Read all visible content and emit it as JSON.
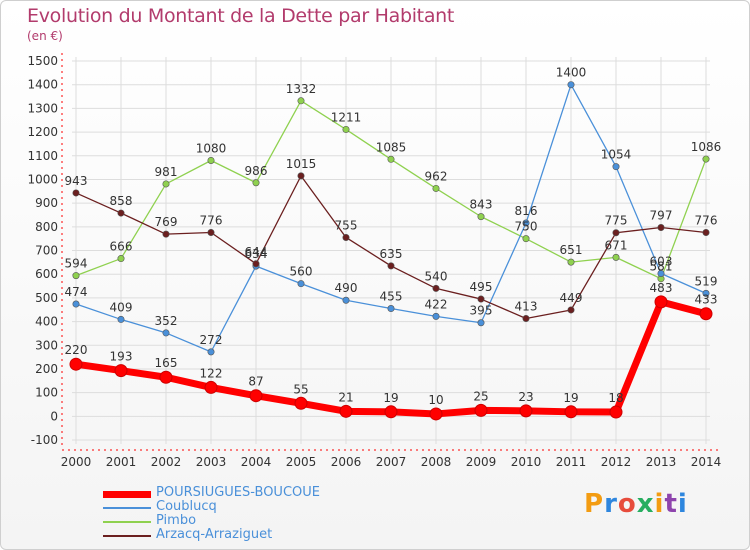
{
  "title": "Evolution du Montant de la Dette par Habitant",
  "unit_label": "(en €)",
  "logo_text": "Proxiti",
  "chart_data": {
    "type": "line",
    "x": [
      "2000",
      "2001",
      "2002",
      "2003",
      "2004",
      "2005",
      "2006",
      "2007",
      "2008",
      "2009",
      "2010",
      "2011",
      "2012",
      "2013",
      "2014"
    ],
    "ylim": [
      -100,
      1500
    ],
    "yticks": [
      "-100",
      "0",
      "100",
      "200",
      "300",
      "400",
      "500",
      "600",
      "700",
      "800",
      "900",
      "1000",
      "1100",
      "1200",
      "1300",
      "1400",
      "1500"
    ],
    "grid": true,
    "legend_position": "bottom-left",
    "series": [
      {
        "name": "POURSIUGUES-BOUCOUE",
        "color": "#ff0000",
        "values": [
          220,
          193,
          165,
          122,
          87,
          55,
          21,
          19,
          10,
          25,
          23,
          19,
          18,
          483,
          433
        ],
        "labels": [
          "220",
          "193",
          "165",
          "122",
          "87",
          "55",
          "21",
          "19",
          "10",
          "25",
          "23",
          "19",
          "18",
          "483",
          "433"
        ]
      },
      {
        "name": "Coublucq",
        "color": "#4a90d9",
        "values": [
          474,
          409,
          352,
          272,
          634,
          560,
          490,
          455,
          422,
          395,
          816,
          1400,
          1054,
          603,
          519
        ],
        "labels": [
          "474",
          "409",
          "352",
          "272",
          "634",
          "560",
          "490",
          "455",
          "422",
          "395",
          "816",
          "1400",
          "1054",
          "603",
          "519"
        ]
      },
      {
        "name": "Pimbo",
        "color": "#8fd14f",
        "values": [
          594,
          666,
          981,
          1080,
          986,
          1332,
          1211,
          1085,
          962,
          843,
          750,
          651,
          671,
          581,
          1086
        ],
        "labels": [
          "594",
          "666",
          "981",
          "1080",
          "986",
          "1332",
          "1211",
          "1085",
          "962",
          "843",
          "750",
          "651",
          "671",
          "581",
          "1086"
        ]
      },
      {
        "name": "Arzacq-Arraziguet",
        "color": "#6b1f1f",
        "values": [
          943,
          858,
          769,
          776,
          644,
          1015,
          755,
          635,
          540,
          495,
          413,
          449,
          775,
          797,
          776
        ],
        "labels": [
          "943",
          "858",
          "769",
          "776",
          "644",
          "1015",
          "755",
          "635",
          "540",
          "495",
          "413",
          "449",
          "775",
          "797",
          "776"
        ]
      }
    ]
  }
}
